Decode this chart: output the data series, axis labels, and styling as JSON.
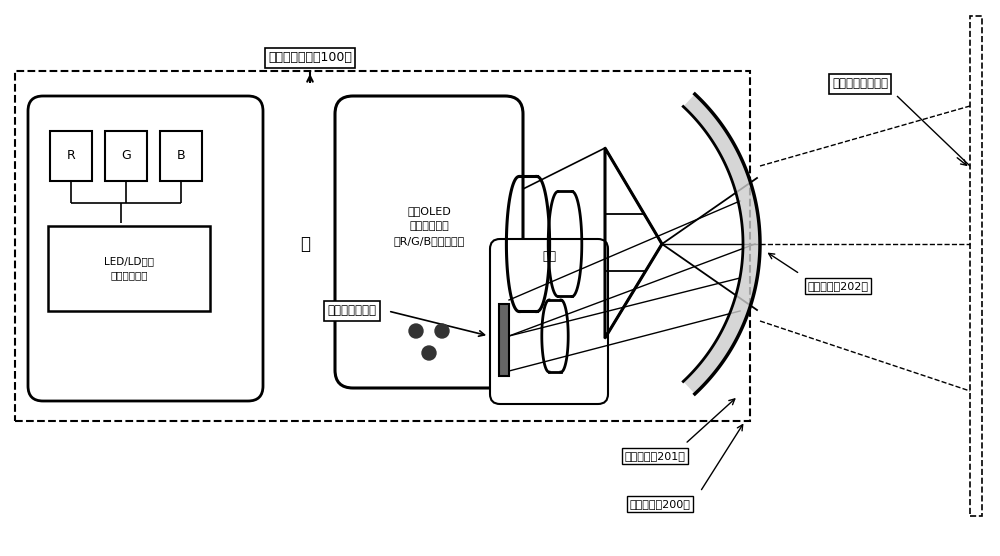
{
  "bg_color": "#ffffff",
  "line_color": "#000000",
  "label_top": "影像投射单元（100）",
  "label_near_eye": "近眼显示（號像）",
  "label_human_eye": "人眼（视网膜）",
  "label_human_eye_box": "人眼",
  "label_optical_film1": "光学薄膜（201）",
  "label_optical_film2": "光学薄膜（202）",
  "label_optical_lens": "光学镜片（200）",
  "label_R": "R",
  "label_G": "G",
  "label_B": "B",
  "label_LED": "LED/LD照明\n微显示影像源",
  "label_or": "或",
  "label_silica_oled": "硅基OLED\n微显示影像源\n（R/G/B）发光像素"
}
